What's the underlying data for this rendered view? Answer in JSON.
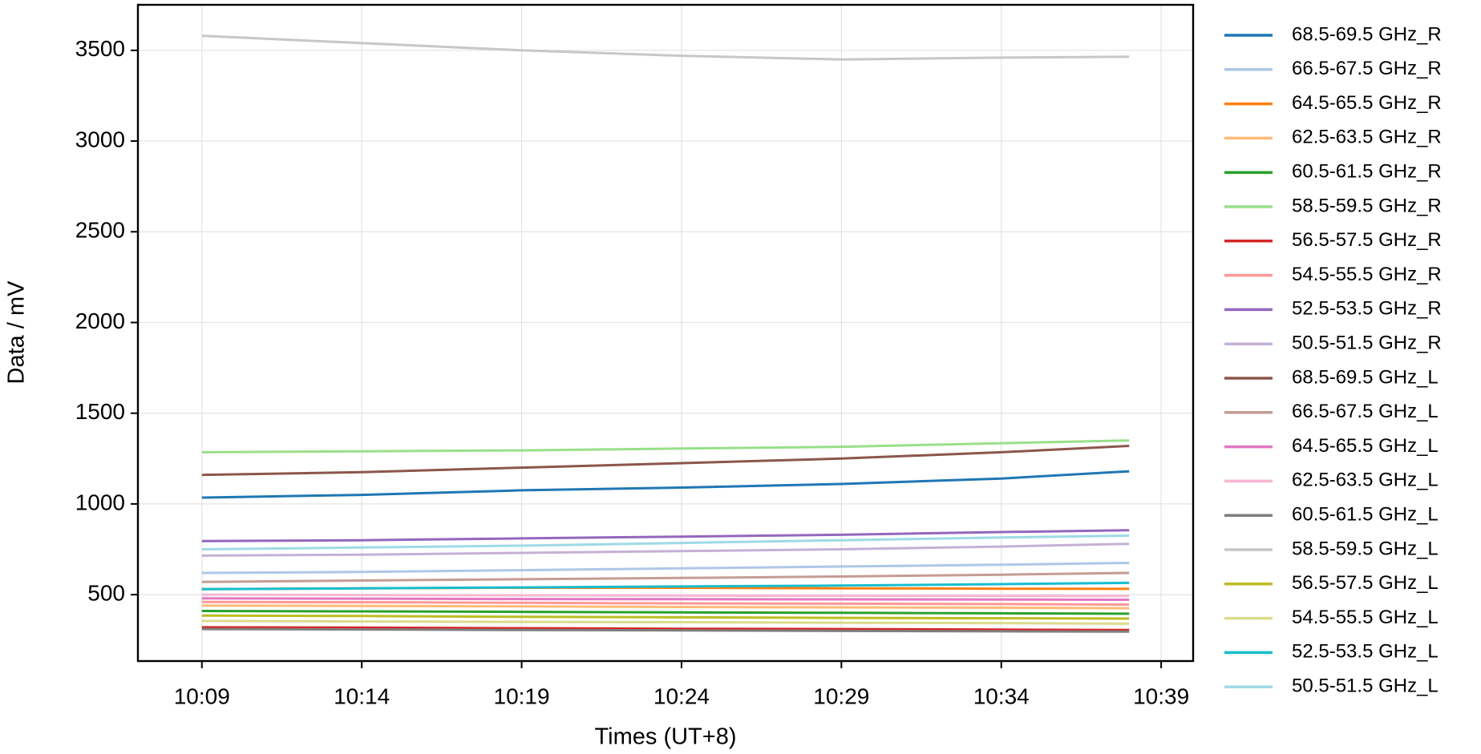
{
  "chart_data": {
    "type": "line",
    "xlabel": "Times (UT+8)",
    "ylabel": "Data / mV",
    "x": [
      "10:09",
      "10:14",
      "10:19",
      "10:24",
      "10:29",
      "10:34",
      "10:38"
    ],
    "xlim": [
      "10:07",
      "10:40"
    ],
    "xticks": [
      "10:09",
      "10:14",
      "10:19",
      "10:24",
      "10:29",
      "10:34",
      "10:39"
    ],
    "ylim": [
      134,
      3751
    ],
    "yticks": [
      500,
      1000,
      1500,
      2000,
      2500,
      3000,
      3500
    ],
    "grid": true,
    "legend": "outside-right",
    "series": [
      {
        "name": "68.5-69.5 GHz_R",
        "color": "#1f77b4",
        "values": [
          1035,
          1050,
          1075,
          1090,
          1110,
          1140,
          1180
        ]
      },
      {
        "name": "66.5-67.5 GHz_R",
        "color": "#aec7e8",
        "values": [
          620,
          625,
          635,
          645,
          655,
          665,
          675
        ]
      },
      {
        "name": "64.5-65.5 GHz_R",
        "color": "#ff7f0e",
        "values": [
          530,
          535,
          538,
          538,
          535,
          533,
          532
        ]
      },
      {
        "name": "62.5-63.5 GHz_R",
        "color": "#ffbb78",
        "values": [
          440,
          438,
          435,
          432,
          430,
          428,
          425
        ]
      },
      {
        "name": "60.5-61.5 GHz_R",
        "color": "#2ca02c",
        "values": [
          410,
          408,
          405,
          402,
          400,
          397,
          395
        ]
      },
      {
        "name": "58.5-59.5 GHz_R",
        "color": "#98df8a",
        "values": [
          1285,
          1290,
          1295,
          1305,
          1315,
          1335,
          1350
        ]
      },
      {
        "name": "56.5-57.5 GHz_R",
        "color": "#d62728",
        "values": [
          320,
          318,
          315,
          312,
          310,
          307,
          305
        ]
      },
      {
        "name": "54.5-55.5 GHz_R",
        "color": "#ff9896",
        "values": [
          460,
          458,
          455,
          452,
          450,
          448,
          445
        ]
      },
      {
        "name": "52.5-53.5 GHz_R",
        "color": "#9467bd",
        "values": [
          795,
          800,
          810,
          820,
          830,
          845,
          855
        ]
      },
      {
        "name": "50.5-51.5 GHz_R",
        "color": "#c5b0d5",
        "values": [
          715,
          720,
          730,
          740,
          750,
          765,
          780
        ]
      },
      {
        "name": "68.5-69.5 GHz_L",
        "color": "#8c564b",
        "values": [
          1160,
          1175,
          1200,
          1225,
          1250,
          1285,
          1320
        ]
      },
      {
        "name": "66.5-67.5 GHz_L",
        "color": "#c49c94",
        "values": [
          570,
          578,
          585,
          592,
          600,
          610,
          620
        ]
      },
      {
        "name": "64.5-65.5 GHz_L",
        "color": "#e377c2",
        "values": [
          480,
          478,
          476,
          475,
          474,
          473,
          472
        ]
      },
      {
        "name": "62.5-63.5 GHz_L",
        "color": "#f7b6d2",
        "values": [
          500,
          498,
          496,
          495,
          494,
          493,
          492
        ]
      },
      {
        "name": "60.5-61.5 GHz_L",
        "color": "#7f7f7f",
        "values": [
          310,
          308,
          305,
          303,
          300,
          298,
          296
        ]
      },
      {
        "name": "58.5-59.5 GHz_L",
        "color": "#c7c7c7",
        "values": [
          3580,
          3540,
          3500,
          3470,
          3450,
          3460,
          3465
        ]
      },
      {
        "name": "56.5-57.5 GHz_L",
        "color": "#bcbd22",
        "values": [
          385,
          382,
          378,
          375,
          372,
          370,
          368
        ]
      },
      {
        "name": "54.5-55.5 GHz_L",
        "color": "#dbdb8d",
        "values": [
          355,
          352,
          350,
          348,
          345,
          343,
          340
        ]
      },
      {
        "name": "52.5-53.5 GHz_L",
        "color": "#17becf",
        "values": [
          530,
          535,
          540,
          545,
          550,
          558,
          565
        ]
      },
      {
        "name": "50.5-51.5 GHz_L",
        "color": "#9edae5",
        "values": [
          750,
          760,
          770,
          785,
          800,
          815,
          825
        ]
      }
    ]
  }
}
